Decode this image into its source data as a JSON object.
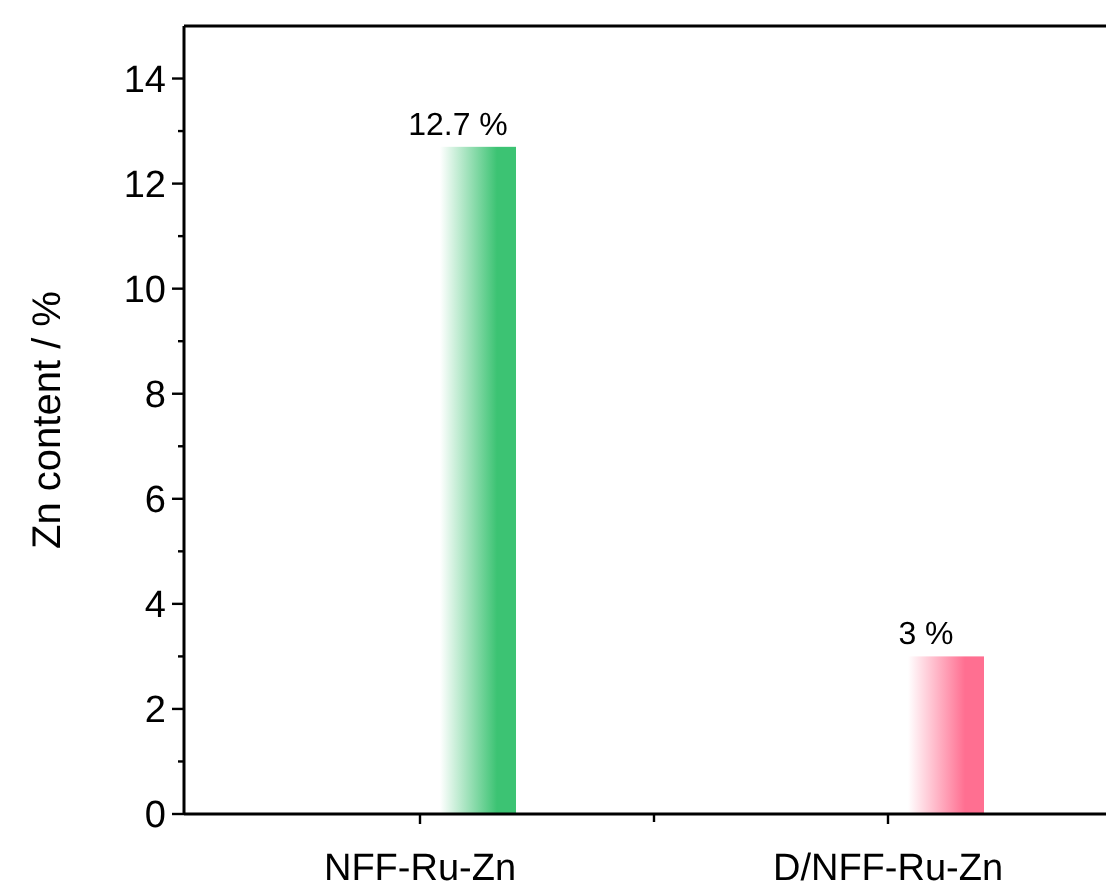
{
  "chart_data": {
    "type": "bar",
    "ylabel": "Zn content / %",
    "categories": [
      "NFF-Ru-Zn",
      "D/NFF-Ru-Zn"
    ],
    "values": [
      12.7,
      3
    ],
    "colors": [
      "#3cc373",
      "#ff6f91"
    ],
    "value_labels": [
      "12.7 %",
      "3 %"
    ],
    "ylim": [
      0,
      15
    ],
    "yticks": [
      0,
      {
        "value": 1,
        "label": null
      },
      2,
      {
        "value": 3,
        "label": null
      },
      4,
      {
        "value": 5,
        "label": null
      },
      6,
      {
        "value": 7,
        "label": null
      },
      8,
      {
        "value": 9,
        "label": null
      },
      10,
      {
        "value": 11,
        "label": null
      },
      12,
      {
        "value": 13,
        "label": null
      },
      14
    ]
  }
}
